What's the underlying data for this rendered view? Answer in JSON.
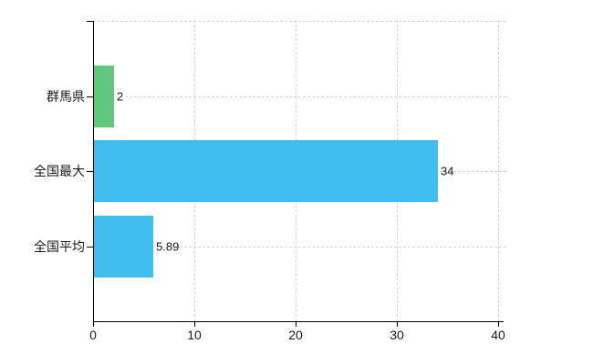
{
  "chart_data": {
    "type": "bar",
    "orientation": "horizontal",
    "title": "",
    "categories": [
      "群馬県",
      "全国最大",
      "全国平均"
    ],
    "values": [
      2,
      34,
      5.89
    ],
    "value_labels": [
      "2",
      "34",
      "5.89"
    ],
    "bar_colors": [
      "#5fc87d",
      "#41bdee",
      "#41bdee"
    ],
    "x_tick_labels": [
      "0",
      "10",
      "20",
      "30",
      "40"
    ],
    "x_tick_values": [
      0,
      10,
      20,
      30,
      40
    ],
    "xlim": [
      0,
      40
    ],
    "grid": "dashed",
    "legend": "none",
    "colors": {
      "axis": "#000000",
      "grid": "#d4d4d4",
      "text": "#1a1a1a",
      "background": "#ffffff"
    }
  }
}
